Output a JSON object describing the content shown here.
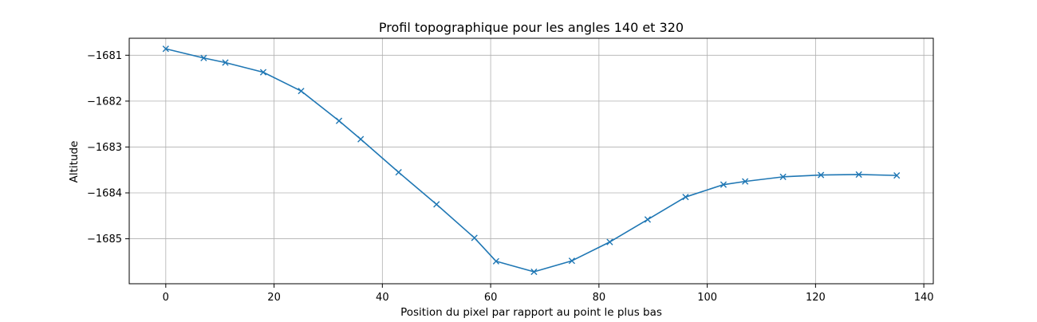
{
  "chart_data": {
    "type": "line",
    "title": "Profil topographique pour les angles 140 et 320",
    "xlabel": "Position du pixel par rapport au point le plus bas",
    "ylabel": "Altitude",
    "xlim": [
      -6.75,
      141.75
    ],
    "ylim": [
      -1685.98,
      -1680.63
    ],
    "grid": true,
    "x_ticks": [
      0,
      20,
      40,
      60,
      80,
      100,
      120,
      140
    ],
    "x_tick_labels": [
      "0",
      "20",
      "40",
      "60",
      "80",
      "100",
      "120",
      "140"
    ],
    "y_ticks": [
      -1681,
      -1682,
      -1683,
      -1684,
      -1685
    ],
    "y_tick_labels": [
      "−1681",
      "−1682",
      "−1683",
      "−1684",
      "−1685"
    ],
    "series": [
      {
        "color": "#1f77b4",
        "marker": "x",
        "x": [
          0,
          7,
          11,
          18,
          25,
          32,
          36,
          43,
          50,
          57,
          61,
          68,
          75,
          82,
          89,
          96,
          103,
          107,
          114,
          121,
          128,
          135
        ],
        "y": [
          -1680.86,
          -1681.06,
          -1681.16,
          -1681.37,
          -1681.78,
          -1682.43,
          -1682.83,
          -1683.55,
          -1684.25,
          -1684.98,
          -1685.49,
          -1685.72,
          -1685.48,
          -1685.07,
          -1684.58,
          -1684.09,
          -1683.82,
          -1683.75,
          -1683.65,
          -1683.61,
          -1683.6,
          -1683.62
        ]
      }
    ]
  }
}
